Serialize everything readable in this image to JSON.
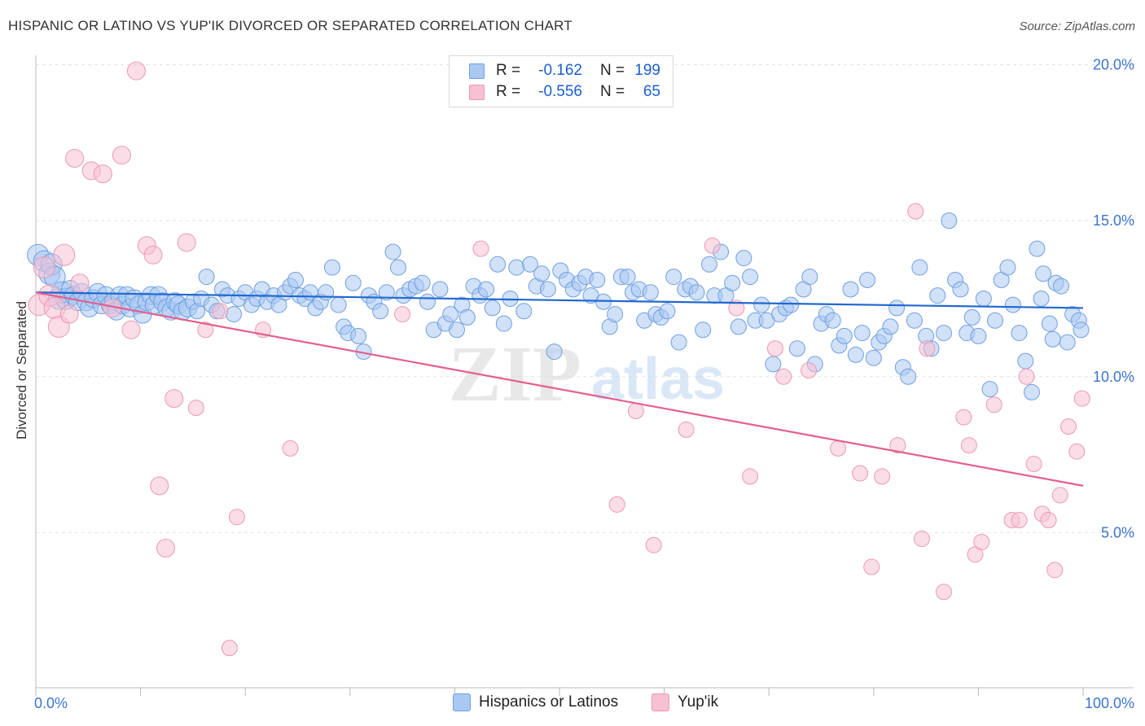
{
  "title": "HISPANIC OR LATINO VS YUP'IK DIVORCED OR SEPARATED CORRELATION CHART",
  "source": "Source: ZipAtlas.com",
  "watermark": {
    "zip": "ZIP",
    "atlas": "atlas"
  },
  "legend": {
    "rows": [
      {
        "r_label": "R =",
        "r_value": "-0.162",
        "n_label": "N =",
        "n_value": "199"
      },
      {
        "r_label": "R =",
        "r_value": "-0.556",
        "n_label": "N =",
        "n_value": "65"
      }
    ]
  },
  "bottom_legend": [
    "Hispanics or Latinos",
    "Yup'ik"
  ],
  "colors": {
    "blue_fill": "#a9c8f2",
    "blue_stroke": "#6f9fe0",
    "blue_line": "#2168d0",
    "pink_fill": "#f6c1d2",
    "pink_stroke": "#ec98b5",
    "pink_line": "#e45e8f",
    "tick_label": "#3b74d1"
  },
  "chart_data": {
    "type": "scatter",
    "xlabel": "",
    "ylabel": "Divorced or Separated",
    "xlim": [
      0,
      100
    ],
    "ylim": [
      0,
      20.5
    ],
    "x_tick_labels": [
      "0.0%",
      "100.0%"
    ],
    "y_ticks": [
      5,
      10,
      15,
      20
    ],
    "y_tick_labels": [
      "5.0%",
      "10.0%",
      "15.0%",
      "20.0%"
    ],
    "grid": "horizontal dashed",
    "legend_position": "top-center",
    "series": [
      {
        "name": "Hispanics or Latinos",
        "r": -0.162,
        "n": 199,
        "trend": {
          "x": [
            0,
            100
          ],
          "y": [
            12.7,
            12.2
          ]
        },
        "points": [
          [
            0.2,
            13.9
          ],
          [
            0.8,
            13.7
          ],
          [
            1.3,
            13.3
          ],
          [
            1.5,
            13.6
          ],
          [
            1.8,
            13.2
          ],
          [
            2.2,
            12.5
          ],
          [
            2.5,
            12.7
          ],
          [
            2.9,
            12.5
          ],
          [
            3.3,
            12.8
          ],
          [
            3.6,
            12.6
          ],
          [
            4.0,
            12.4
          ],
          [
            4.4,
            12.7
          ],
          [
            4.8,
            12.4
          ],
          [
            5.1,
            12.2
          ],
          [
            5.5,
            12.5
          ],
          [
            5.9,
            12.7
          ],
          [
            6.3,
            12.3
          ],
          [
            6.7,
            12.6
          ],
          [
            7.1,
            12.3
          ],
          [
            7.4,
            12.4
          ],
          [
            7.7,
            12.1
          ],
          [
            8.0,
            12.6
          ],
          [
            8.3,
            12.3
          ],
          [
            8.7,
            12.6
          ],
          [
            9.0,
            12.2
          ],
          [
            9.4,
            12.5
          ],
          [
            9.8,
            12.3
          ],
          [
            10.2,
            12.0
          ],
          [
            10.6,
            12.4
          ],
          [
            11.0,
            12.6
          ],
          [
            11.3,
            12.3
          ],
          [
            11.7,
            12.6
          ],
          [
            12.1,
            12.4
          ],
          [
            12.5,
            12.2
          ],
          [
            12.9,
            12.1
          ],
          [
            13.3,
            12.4
          ],
          [
            13.6,
            12.3
          ],
          [
            14.0,
            12.1
          ],
          [
            14.5,
            12.2
          ],
          [
            15.0,
            12.4
          ],
          [
            15.4,
            12.1
          ],
          [
            15.8,
            12.5
          ],
          [
            16.3,
            13.2
          ],
          [
            16.8,
            12.3
          ],
          [
            17.3,
            12.1
          ],
          [
            17.8,
            12.8
          ],
          [
            18.3,
            12.6
          ],
          [
            18.9,
            12.0
          ],
          [
            19.4,
            12.5
          ],
          [
            20.0,
            12.7
          ],
          [
            20.6,
            12.3
          ],
          [
            21.1,
            12.5
          ],
          [
            21.6,
            12.8
          ],
          [
            22.1,
            12.4
          ],
          [
            22.7,
            12.6
          ],
          [
            23.2,
            12.3
          ],
          [
            23.8,
            12.7
          ],
          [
            24.3,
            12.9
          ],
          [
            24.8,
            13.1
          ],
          [
            25.2,
            12.6
          ],
          [
            25.7,
            12.5
          ],
          [
            26.2,
            12.7
          ],
          [
            26.7,
            12.2
          ],
          [
            27.2,
            12.4
          ],
          [
            27.7,
            12.7
          ],
          [
            28.3,
            13.5
          ],
          [
            28.9,
            12.3
          ],
          [
            29.4,
            11.6
          ],
          [
            29.8,
            11.4
          ],
          [
            30.3,
            13.0
          ],
          [
            30.8,
            11.3
          ],
          [
            31.3,
            10.8
          ],
          [
            31.8,
            12.6
          ],
          [
            32.3,
            12.4
          ],
          [
            32.9,
            12.1
          ],
          [
            33.5,
            12.7
          ],
          [
            34.1,
            14.0
          ],
          [
            34.6,
            13.5
          ],
          [
            35.1,
            12.6
          ],
          [
            35.7,
            12.8
          ],
          [
            36.3,
            12.9
          ],
          [
            36.9,
            13.0
          ],
          [
            37.4,
            12.4
          ],
          [
            38.0,
            11.5
          ],
          [
            38.6,
            12.8
          ],
          [
            39.1,
            11.7
          ],
          [
            39.6,
            12.0
          ],
          [
            40.2,
            11.5
          ],
          [
            40.7,
            12.3
          ],
          [
            41.2,
            11.9
          ],
          [
            41.8,
            12.9
          ],
          [
            42.4,
            12.6
          ],
          [
            43.0,
            12.8
          ],
          [
            43.6,
            12.2
          ],
          [
            44.1,
            13.6
          ],
          [
            44.7,
            11.7
          ],
          [
            45.3,
            12.5
          ],
          [
            45.9,
            13.5
          ],
          [
            46.6,
            12.1
          ],
          [
            47.2,
            13.6
          ],
          [
            47.8,
            12.9
          ],
          [
            48.3,
            13.3
          ],
          [
            48.9,
            12.8
          ],
          [
            49.5,
            10.8
          ],
          [
            50.1,
            13.4
          ],
          [
            50.7,
            13.1
          ],
          [
            51.3,
            12.8
          ],
          [
            51.9,
            13.0
          ],
          [
            52.5,
            13.2
          ],
          [
            53.0,
            12.6
          ],
          [
            53.6,
            13.1
          ],
          [
            54.2,
            12.4
          ],
          [
            54.8,
            11.6
          ],
          [
            55.3,
            12.0
          ],
          [
            55.9,
            13.2
          ],
          [
            56.5,
            13.2
          ],
          [
            57.0,
            12.7
          ],
          [
            57.6,
            12.8
          ],
          [
            58.1,
            11.8
          ],
          [
            58.7,
            12.7
          ],
          [
            59.2,
            12.0
          ],
          [
            59.7,
            11.9
          ],
          [
            60.3,
            12.1
          ],
          [
            60.9,
            13.2
          ],
          [
            61.4,
            11.1
          ],
          [
            62.0,
            12.8
          ],
          [
            62.5,
            12.9
          ],
          [
            63.1,
            12.7
          ],
          [
            63.7,
            11.5
          ],
          [
            64.3,
            13.6
          ],
          [
            64.8,
            12.6
          ],
          [
            65.4,
            14.0
          ],
          [
            65.9,
            12.6
          ],
          [
            66.5,
            13.0
          ],
          [
            67.1,
            11.6
          ],
          [
            67.6,
            13.8
          ],
          [
            68.2,
            13.2
          ],
          [
            68.7,
            11.8
          ],
          [
            69.3,
            12.3
          ],
          [
            69.8,
            11.8
          ],
          [
            70.4,
            10.4
          ],
          [
            71.0,
            12.0
          ],
          [
            71.6,
            12.2
          ],
          [
            72.1,
            12.3
          ],
          [
            72.7,
            10.9
          ],
          [
            73.3,
            12.8
          ],
          [
            73.9,
            13.2
          ],
          [
            74.4,
            10.4
          ],
          [
            75.0,
            11.7
          ],
          [
            75.5,
            12.0
          ],
          [
            76.1,
            11.8
          ],
          [
            76.7,
            11.0
          ],
          [
            77.2,
            11.3
          ],
          [
            77.8,
            12.8
          ],
          [
            78.3,
            10.7
          ],
          [
            78.9,
            11.4
          ],
          [
            79.4,
            13.1
          ],
          [
            80.0,
            10.6
          ],
          [
            80.5,
            11.1
          ],
          [
            81.0,
            11.3
          ],
          [
            81.6,
            11.6
          ],
          [
            82.2,
            12.2
          ],
          [
            82.8,
            10.3
          ],
          [
            83.3,
            10.0
          ],
          [
            83.9,
            11.8
          ],
          [
            84.4,
            13.5
          ],
          [
            85.0,
            11.3
          ],
          [
            85.5,
            10.9
          ],
          [
            86.1,
            12.6
          ],
          [
            86.7,
            11.4
          ],
          [
            87.2,
            15.0
          ],
          [
            87.8,
            13.1
          ],
          [
            88.3,
            12.8
          ],
          [
            88.9,
            11.4
          ],
          [
            89.4,
            11.9
          ],
          [
            90.0,
            11.3
          ],
          [
            90.5,
            12.5
          ],
          [
            91.1,
            9.6
          ],
          [
            91.6,
            11.8
          ],
          [
            92.2,
            13.1
          ],
          [
            92.8,
            13.5
          ],
          [
            93.3,
            12.3
          ],
          [
            93.9,
            11.4
          ],
          [
            94.5,
            10.5
          ],
          [
            95.1,
            9.5
          ],
          [
            95.6,
            14.1
          ],
          [
            96.2,
            13.3
          ],
          [
            96.8,
            11.7
          ],
          [
            97.4,
            13.0
          ],
          [
            97.9,
            12.9
          ],
          [
            98.5,
            11.1
          ],
          [
            99.0,
            12.0
          ],
          [
            99.6,
            11.8
          ],
          [
            99.8,
            11.5
          ],
          [
            97.1,
            11.2
          ],
          [
            96.0,
            12.5
          ]
        ]
      },
      {
        "name": "Yup'ik",
        "r": -0.556,
        "n": 65,
        "trend": {
          "x": [
            0,
            100
          ],
          "y": [
            12.7,
            6.5
          ]
        },
        "points": [
          [
            0.3,
            12.3
          ],
          [
            0.8,
            13.5
          ],
          [
            1.3,
            12.6
          ],
          [
            1.8,
            12.2
          ],
          [
            2.2,
            11.6
          ],
          [
            2.7,
            13.9
          ],
          [
            3.2,
            12.0
          ],
          [
            3.7,
            17.0
          ],
          [
            4.2,
            13.0
          ],
          [
            5.3,
            16.6
          ],
          [
            6.4,
            16.5
          ],
          [
            7.3,
            12.2
          ],
          [
            8.2,
            17.1
          ],
          [
            9.1,
            11.5
          ],
          [
            9.6,
            19.8
          ],
          [
            10.6,
            14.2
          ],
          [
            11.2,
            13.9
          ],
          [
            11.8,
            6.5
          ],
          [
            12.4,
            4.5
          ],
          [
            13.2,
            9.3
          ],
          [
            14.4,
            14.3
          ],
          [
            15.3,
            9.0
          ],
          [
            16.2,
            11.5
          ],
          [
            17.6,
            12.1
          ],
          [
            18.5,
            1.3
          ],
          [
            19.2,
            5.5
          ],
          [
            21.7,
            11.5
          ],
          [
            24.3,
            7.7
          ],
          [
            35.0,
            12.0
          ],
          [
            42.5,
            14.1
          ],
          [
            55.5,
            5.9
          ],
          [
            57.3,
            8.9
          ],
          [
            59.0,
            4.6
          ],
          [
            62.1,
            8.3
          ],
          [
            64.6,
            14.2
          ],
          [
            66.9,
            12.2
          ],
          [
            68.2,
            6.8
          ],
          [
            70.6,
            10.9
          ],
          [
            71.4,
            10.0
          ],
          [
            73.8,
            10.2
          ],
          [
            76.6,
            7.7
          ],
          [
            78.7,
            6.9
          ],
          [
            79.8,
            3.9
          ],
          [
            80.8,
            6.8
          ],
          [
            82.3,
            7.8
          ],
          [
            84.0,
            15.3
          ],
          [
            84.6,
            4.8
          ],
          [
            85.1,
            10.9
          ],
          [
            86.7,
            3.1
          ],
          [
            88.6,
            8.7
          ],
          [
            89.1,
            7.8
          ],
          [
            89.7,
            4.3
          ],
          [
            90.3,
            4.7
          ],
          [
            91.5,
            9.1
          ],
          [
            93.2,
            5.4
          ],
          [
            93.9,
            5.4
          ],
          [
            94.6,
            10.0
          ],
          [
            95.3,
            7.2
          ],
          [
            96.1,
            5.6
          ],
          [
            96.7,
            5.4
          ],
          [
            97.3,
            3.8
          ],
          [
            97.8,
            6.2
          ],
          [
            98.6,
            8.4
          ],
          [
            99.4,
            7.6
          ],
          [
            99.9,
            9.3
          ]
        ]
      }
    ]
  }
}
